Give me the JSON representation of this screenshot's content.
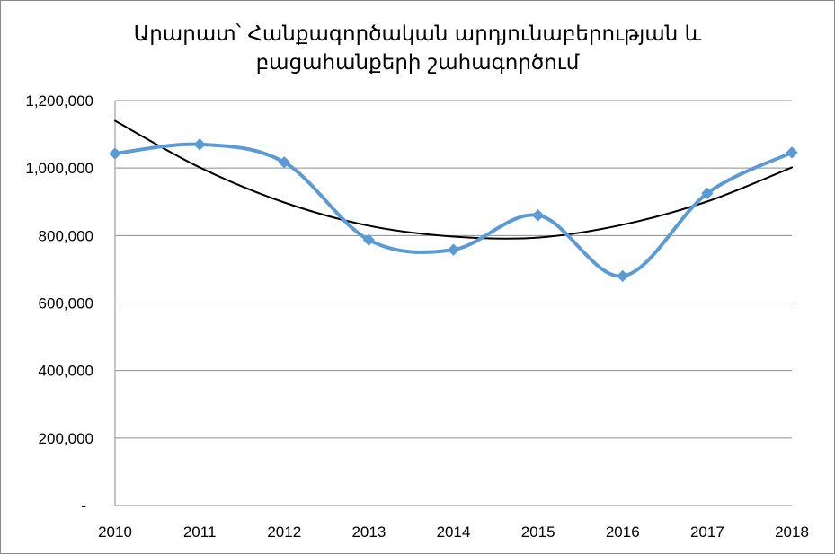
{
  "chart_data": {
    "type": "line",
    "title_lines": [
      "Արարատ՝ Հանքագործական արդյունաբերության և",
      "բացահանքերի շահագործում"
    ],
    "xlabel": "",
    "ylabel": "",
    "categories": [
      "2010",
      "2011",
      "2012",
      "2013",
      "2014",
      "2015",
      "2016",
      "2017",
      "2018"
    ],
    "y_ticks": [
      0,
      200000,
      400000,
      600000,
      800000,
      1000000,
      1200000
    ],
    "y_tick_labels": [
      "-",
      "200,000",
      "400,000",
      "600,000",
      "800,000",
      "1,000,000",
      "1,200,000"
    ],
    "ylim": [
      0,
      1200000
    ],
    "grid": true,
    "legend": "none",
    "series": [
      {
        "values": [
          1043000,
          1070000,
          1017000,
          787000,
          758000,
          860000,
          680000,
          925000,
          1046000
        ],
        "color": "#5B9BD5",
        "marker": "diamond",
        "smooth": true
      },
      {
        "kind": "trendline",
        "values": [
          1140000,
          1002000,
          898000,
          829000,
          797000,
          794000,
          832000,
          901000,
          1002000
        ],
        "color": "#000000",
        "smooth": true
      }
    ]
  }
}
